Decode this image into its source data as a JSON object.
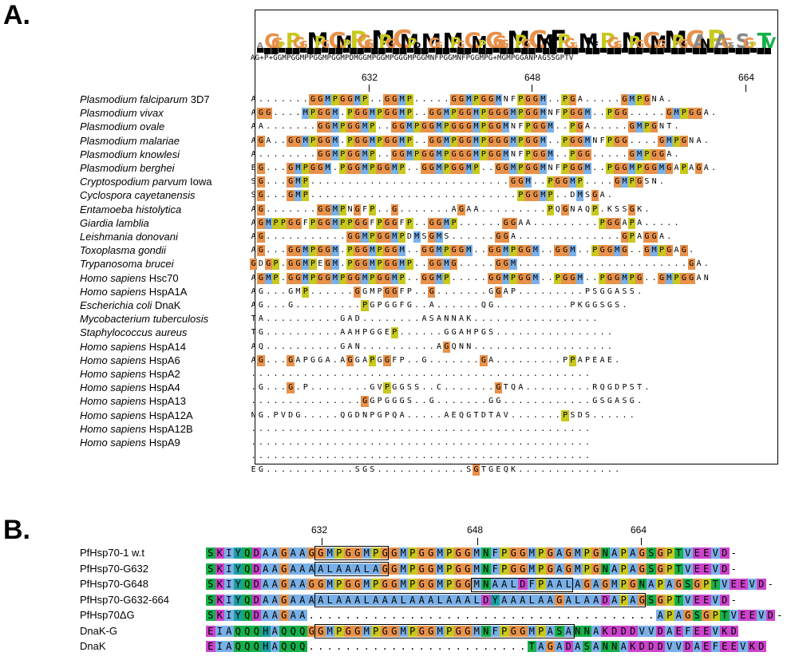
{
  "panel_a": {
    "label": "A.",
    "consensus": "AG+P+GGMPGGMPPGGMPGGMPDMGGMPGGMPGGGMPGGMNFPGGMNFPGGMPG+MGMPGGANPAGSSGPTV",
    "logo_residues": "AGGPPGGMPGGMPPGGMPGGMPDMGGMPGGMPGGGMPGGMNFPGGMNFPGGMPGGMGMPGGANPAGSSGPTV",
    "positions": [
      "632",
      "648",
      "664"
    ],
    "species": [
      {
        "name": "Plasmodium falciparum",
        "suffix": " 3D7",
        "seq": "A.......GGMPGGMP..GGMP.....GGMPGGMNFPGGM..PGA.....GMPGNA."
      },
      {
        "name": "Plasmodium vivax",
        "suffix": "",
        "seq": "AGG....MPGGM.PGGMPGGMP..GGMPGGMPGGGMPGGMNFPGGM..PGG.....GMPGGA."
      },
      {
        "name": "Plasmodium ovale",
        "suffix": "",
        "seq": "AA.......GGMPGGMP..GGMPGGMPGGGMPGGMNFPGGM..PGA.....GMPGNT."
      },
      {
        "name": "Plasmodium malariae",
        "suffix": "",
        "seq": "AGA..GGMPGGM.PGGMPGGMP..GGMPGGMPGGGMPGGM..PGGMNFPGG....GMPGNA."
      },
      {
        "name": "Plasmodium knowlesi",
        "suffix": "",
        "seq": "A........GGMPGGMP..GGMPGGMPGGGMPGGMNFPGGM..PGG.....GMPGGA."
      },
      {
        "name": "Plasmodium berghei",
        "suffix": "",
        "seq": "EG...GMPGGM.PGGMPGGMP..GGMPGGMP..GGMPGGMNFPGGM..PGGMPGGMGAPAGA."
      },
      {
        "name": "Cryptospodium parvum",
        "suffix": " Iowa",
        "seq": "SG...GMP...........................GGM..PGGMP....GMPGSN."
      },
      {
        "name": "Cyclospora cayetanensis",
        "suffix": "",
        "seq": "SG...GMP............................PGGMP..DMSGA."
      },
      {
        "name": "Entamoeba  histolytica",
        "suffix": "",
        "seq": "AG.......GGMPNGFP..G.......AGAA.........PQGNAQP.KSSGK."
      },
      {
        "name": "Giardia lamblia",
        "suffix": "",
        "seq": "AGMPPGGFPGGMPPGGFPGGFP..GGMP......GGAA.........PGGAPA....."
      },
      {
        "name": "Leishmania donovani",
        "suffix": "",
        "seq": "AG...........GGMPGGMPDMSGMS......GGA..............GPAGGA."
      },
      {
        "name": "Toxoplasma gondii",
        "suffix": "",
        "seq": "AG...GGMPGGM.PGGMPGGM..GGMPGGM..GGMPGGM..GGM..PGGMG..GMPGAG."
      },
      {
        "name": "Trypanosoma brucei",
        "suffix": "",
        "seq": "GDGP.GGMPEGM.PGGMPGGMP..GGMG.....GGM.......................GA."
      },
      {
        "name": "Homo sapiens",
        "suffix": " Hsc70",
        "seq": "AGMP.GGMPGGMPGGMPGGMP..GGMP.....GGMPGGM..PGGM..PGGMPG..GMPGGAN"
      },
      {
        "name": "Homo sapiens",
        "suffix": " HspA1A",
        "seq": "AG...GMP......GGMPGGFP..G.......GGAP.........PSGGASS."
      },
      {
        "name": "Escherichia coli",
        "suffix": " DnaK",
        "seq": "AG...G.........PGPGGFG..A......QG..........PKGGSGS."
      },
      {
        "name": "Mycobacterium tuberculosis",
        "suffix": "",
        "seq": "TA..........GAD........ASANNAK................."
      },
      {
        "name": "Staphylococcus aureus",
        "suffix": "",
        "seq": "TG..........AAHPGGEP......GGAHPGS................"
      },
      {
        "name": "Homo sapiens",
        "suffix": " HspA14",
        "seq": "AQ..........GAN..........AGQNN..................."
      },
      {
        "name": "Homo sapiens",
        "suffix": " HspA6",
        "seq": "AG...GAPGGA.AGGAPGGFP..G.......GA.........PPAPEAE."
      },
      {
        "name": "Homo sapiens",
        "suffix": " HspA2",
        "seq": ".............................................."
      },
      {
        "name": "Homo sapiens",
        "suffix": " HspA4",
        "seq": ".G...G.P........GVPGGSS..C.......GTQA.........RQGDPST."
      },
      {
        "name": "Homo sapiens",
        "suffix": " HspA13",
        "seq": "...............GGPGGGS..G.......GG............GSGASG."
      },
      {
        "name": "Homo sapiens",
        "suffix": " HspA12A",
        "seq": "NG.PVDG.....QGDNPGPQA.....AEQGTDTAV.......PSDS......"
      },
      {
        "name": "Homo sapiens",
        "suffix": " HspA12B",
        "seq": ".............................................."
      },
      {
        "name": "Homo sapiens",
        "suffix": " HspA9",
        "seq": ".............................................."
      },
      {
        "name": "",
        "suffix": "",
        "seq": ".............................................."
      },
      {
        "name": "",
        "suffix": "",
        "seq": "EG............SGS............SGTGEQK.............."
      }
    ]
  },
  "panel_b": {
    "label": "B.",
    "positions": [
      "632",
      "648",
      "664"
    ],
    "rows": [
      {
        "name": "PfHsp70-1 w.t",
        "seq": "SKIYQDAAGAAGGMPGGMPGGMPGGMPGGMNFPGGMPGAGMPGNAPAGSGPTVEEVD-"
      },
      {
        "name": "PfHsp70-G632",
        "seq": "SKIYQDAAGAAAALAAALAGGMPGGMPGGMNFPGGMPGAGMPGNAPAGSGPTVEEVD-"
      },
      {
        "name": "PfHsp70-G648",
        "seq": "SKIYQDAAGAAGGMPGGMPGGMPGGMPGGMNAALDFPAALAGAGMPGNAPAGSGPTVEEVD-"
      },
      {
        "name": "PfHsp70-G632-664",
        "seq": "SKIYQDAAGAAAALAAALAAALAAALAAALDYAAALAAGALAADAPAGSGPTVEEVD-"
      },
      {
        "name": "PfHsp70ΔG",
        "seq": "SKIYQDAAGAA......................................APAGSGPTVEEVD-"
      },
      {
        "name": "DnaK-G",
        "seq": "EIAQQQHAQQQGGMPGGMPGGMPGGMPGGMNFPGGMPASANNAKDDDVVDAEFEEVKD"
      },
      {
        "name": "DnaK",
        "seq": "EIAQQQHAQQQ........................TAGADASANNAKDDDVVDAEFEEVKD"
      }
    ]
  },
  "colors": {
    "G": "#e8914a",
    "P": "#c8c81e",
    "M": "#7ab0e8",
    "A": "#7ab0e8",
    "L": "#7ab0e8",
    "S": "#16b04a",
    "T": "#16b04a",
    "K": "#cc44cc",
    "E": "#cc44cc",
    "D": "#cc44cc",
    "Q": "#16b04a",
    "N": "#16b04a",
    "H": "#1aa0a0",
    "Y": "#1aa0a0",
    "F": "#7ab0e8",
    "V": "#7ab0e8",
    "I": "#7ab0e8",
    "R": "#e84848"
  }
}
